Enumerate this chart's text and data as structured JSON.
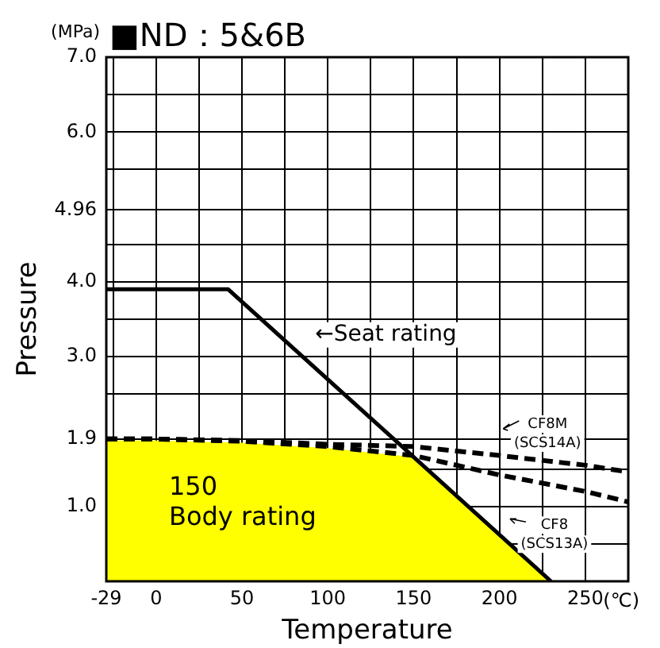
{
  "chart_data": {
    "type": "line",
    "title": "■ND：5&6B",
    "xlabel": "Temperature",
    "ylabel": "Pressure",
    "xlim": [
      -29,
      275
    ],
    "xticks": [
      -29,
      {
        "value": -25,
        "label": null
      },
      0,
      {
        "value": 25,
        "label": null
      },
      50,
      {
        "value": 75,
        "label": null
      },
      100,
      {
        "value": 125,
        "label": null
      },
      150,
      {
        "value": 175,
        "label": null
      },
      200,
      {
        "value": 225,
        "label": null
      },
      250,
      {
        "value": 275,
        "label": null
      }
    ],
    "ylim": [
      0,
      7
    ],
    "yticks": [
      {
        "value": 0,
        "label": null
      },
      {
        "value": 0.5,
        "label": null
      },
      {
        "value": 1.0,
        "label": "1.0"
      },
      {
        "value": 1.5,
        "label": null
      },
      1.9,
      {
        "value": 2.5,
        "label": null
      },
      {
        "value": 3.0,
        "label": "3.0"
      },
      {
        "value": 3.5,
        "label": null
      },
      {
        "value": 4.0,
        "label": "4.0"
      },
      {
        "value": 4.5,
        "label": null
      },
      4.96,
      {
        "value": 5.5,
        "label": null
      },
      {
        "value": 6.0,
        "label": "6.0"
      },
      {
        "value": 6.5,
        "label": null
      },
      {
        "value": 7.0,
        "label": "7.0"
      }
    ],
    "grid": true,
    "legend": false,
    "marker": "none",
    "series": [
      {
        "type": "area",
        "color": "#ffff00",
        "x": [
          -29,
          0,
          50,
          100,
          150,
          230
        ],
        "values": [
          1.88,
          1.88,
          1.85,
          1.78,
          1.66,
          0
        ]
      },
      {
        "color": "#000000",
        "line_style": "solid",
        "x": [
          -29,
          42,
          230
        ],
        "values": [
          3.9,
          3.9,
          0
        ]
      },
      {
        "color": "#000000",
        "line_style": "dashed",
        "x": [
          -29,
          0,
          50,
          100,
          150,
          200,
          250,
          275
        ],
        "values": [
          1.9,
          1.9,
          1.88,
          1.83,
          1.8,
          1.68,
          1.55,
          1.46
        ]
      },
      {
        "color": "#000000",
        "line_style": "dashed",
        "x": [
          -29,
          0,
          50,
          100,
          150,
          200,
          250,
          275
        ],
        "values": [
          1.9,
          1.9,
          1.87,
          1.8,
          1.68,
          1.42,
          1.2,
          1.06
        ]
      }
    ],
    "annotations": [
      "(MPa)",
      "(℃)",
      "←Seat rating",
      "150\nBody rating",
      {
        "text": "CF8M\n(SCS14A)",
        "x": 228,
        "y": 2.1
      },
      {
        "text": "CF8\n(SCS13A)",
        "x": 232,
        "y": 0.75
      }
    ]
  }
}
